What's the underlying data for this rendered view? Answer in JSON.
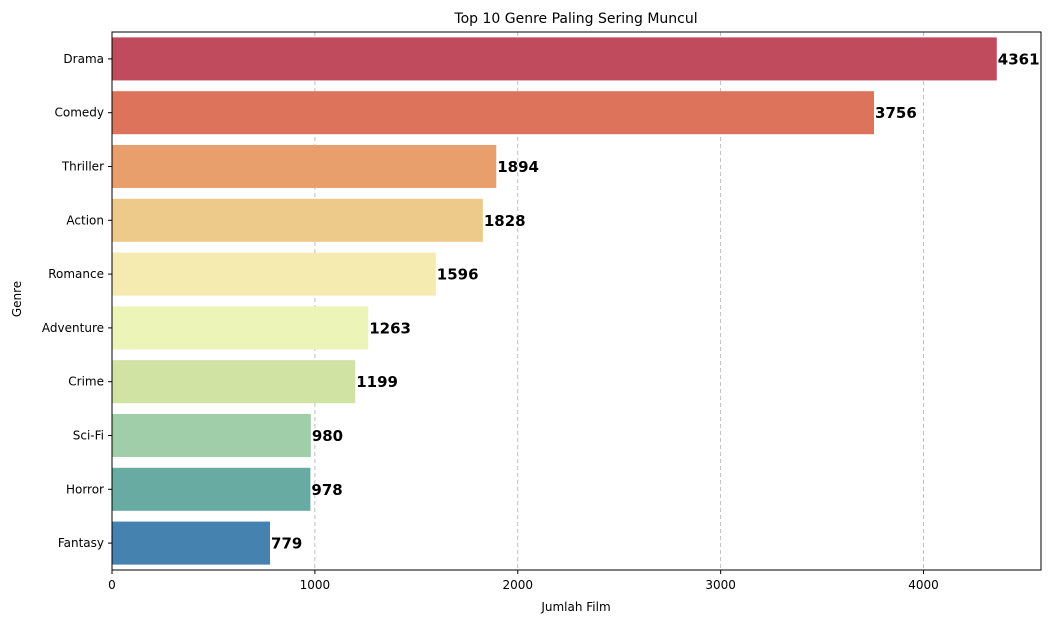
{
  "chart_data": {
    "type": "bar",
    "orientation": "horizontal",
    "title": "Top 10 Genre Paling Sering Muncul",
    "xlabel": "Jumlah Film",
    "ylabel": "Genre",
    "categories": [
      "Drama",
      "Comedy",
      "Thriller",
      "Action",
      "Romance",
      "Adventure",
      "Crime",
      "Sci-Fi",
      "Horror",
      "Fantasy"
    ],
    "values": [
      4361,
      3756,
      1894,
      1828,
      1596,
      1263,
      1199,
      980,
      978,
      779
    ],
    "data_labels": [
      "4361",
      "3756",
      "1894",
      "1828",
      "1596",
      "1263",
      "1199",
      "980",
      "978",
      "779"
    ],
    "xlim": [
      0,
      4579
    ],
    "xticks": [
      0,
      1000,
      2000,
      3000,
      4000
    ],
    "xtick_labels": [
      "0",
      "1000",
      "2000",
      "3000",
      "4000"
    ],
    "grid": "x-dashed",
    "colors": [
      "#c04b5c",
      "#dc735a",
      "#e89f6b",
      "#edc98a",
      "#f5ebb0",
      "#ecf4b8",
      "#d0e3a3",
      "#9fcea8",
      "#68ab a2",
      "#4682b0"
    ]
  }
}
